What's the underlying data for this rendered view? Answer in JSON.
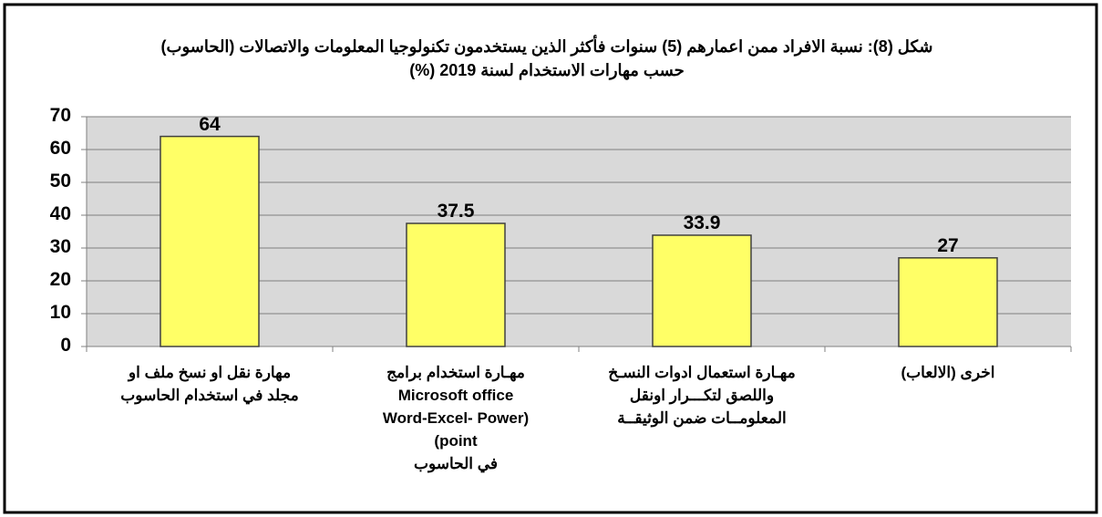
{
  "chart_data": {
    "type": "bar",
    "title": "شكل (8): نسبة الافراد ممن اعمارهم (5) سنوات فأكثر الذين يستخدمون تكنولوجيا المعلومات والاتصالات (الحاسوب)\nحسب مهارات الاستخدام لسنة 2019 (%)",
    "categories": [
      "مهارة نقل او نسخ ملف او\nمجلد في استخدام الحاسوب",
      "مهـارة استخدام برامج\nMicrosoft office\n(Word-Excel- Power\npoint)\nفي الحاسوب",
      "مهـارة استعمال ادوات النسـخ\nواللصق لتكـــرار اونقل\nالمعلومــات ضمن الوثيقــة",
      "اخرى (الالعاب)"
    ],
    "values": [
      64,
      37.5,
      33.9,
      27
    ],
    "color": "#ffff66",
    "ylim": [
      0,
      70
    ],
    "yticks": [
      0,
      10,
      20,
      30,
      40,
      50,
      60,
      70
    ],
    "grid": true
  }
}
